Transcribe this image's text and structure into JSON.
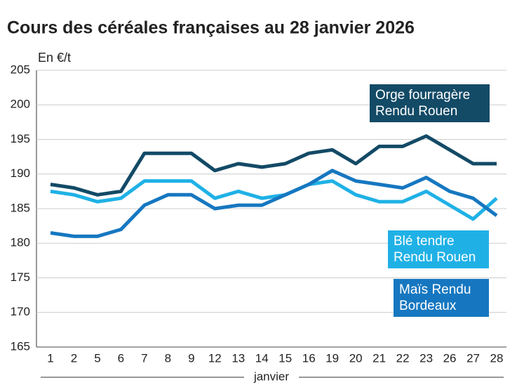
{
  "chart_data": {
    "type": "line",
    "title": "Cours des céréales françaises au 28 janvier 2026",
    "y_label": "En €/t",
    "x_label": "janvier",
    "categories": [
      "1",
      "2",
      "5",
      "6",
      "7",
      "8",
      "9",
      "12",
      "13",
      "14",
      "15",
      "16",
      "19",
      "20",
      "21",
      "22",
      "23",
      "26",
      "27",
      "28"
    ],
    "series": [
      {
        "name": "Orge fourragère Rendu Rouen",
        "color": "#134a66",
        "values": [
          188.5,
          188,
          187,
          187.5,
          193,
          193,
          193,
          190.5,
          191.5,
          191,
          191.5,
          193,
          193.5,
          191.5,
          194,
          194,
          195.5,
          193.5,
          191.5,
          191.5
        ]
      },
      {
        "name": "Blé tendre Rendu Rouen",
        "color": "#1fb1e6",
        "values": [
          187.5,
          187,
          186,
          186.5,
          189,
          189,
          189,
          186.5,
          187.5,
          186.5,
          187,
          188.5,
          189,
          187,
          186,
          186,
          187.5,
          185.5,
          183.5,
          186.5
        ]
      },
      {
        "name": "Maïs Rendu Bordeaux",
        "color": "#1677c0",
        "values": [
          181.5,
          181,
          181,
          182,
          185.5,
          187,
          187,
          185,
          185.5,
          185.5,
          187,
          188.5,
          190.5,
          189,
          188.5,
          188,
          189.5,
          187.5,
          186.5,
          184
        ]
      }
    ],
    "ylim": [
      165,
      205
    ],
    "yticks": [
      165,
      170,
      175,
      180,
      185,
      190,
      195,
      200,
      205
    ],
    "grid": true
  }
}
